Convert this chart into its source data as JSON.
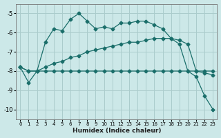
{
  "xlabel": "Humidex (Indice chaleur)",
  "ylabel": "",
  "background_color": "#cce8e8",
  "grid_color": "#aacccc",
  "line_color": "#1a6e6a",
  "xlim": [
    -0.5,
    23.5
  ],
  "ylim": [
    -10.5,
    -4.5
  ],
  "yticks": [
    -10,
    -9,
    -8,
    -7,
    -6,
    -5
  ],
  "xticks": [
    0,
    1,
    2,
    3,
    4,
    5,
    6,
    7,
    8,
    9,
    10,
    11,
    12,
    13,
    14,
    15,
    16,
    17,
    18,
    19,
    20,
    21,
    22,
    23
  ],
  "series1_x": [
    0,
    1,
    2,
    3,
    4,
    5,
    6,
    7,
    8,
    9,
    10,
    11,
    12,
    13,
    14,
    15,
    16,
    17,
    18,
    19,
    20,
    21,
    22,
    23
  ],
  "series1_y": [
    -7.8,
    -8.6,
    -8.0,
    -6.5,
    -5.8,
    -5.9,
    -5.3,
    -5.0,
    -5.4,
    -5.8,
    -5.7,
    -5.8,
    -5.5,
    -5.5,
    -5.4,
    -5.4,
    -5.6,
    -5.8,
    -6.3,
    -6.6,
    -8.0,
    -8.3,
    -9.3,
    -10.0
  ],
  "series2_x": [
    0,
    1,
    2,
    3,
    4,
    5,
    6,
    7,
    8,
    9,
    10,
    11,
    12,
    13,
    14,
    15,
    16,
    17,
    18,
    19,
    20,
    21,
    22,
    23
  ],
  "series2_y": [
    -7.8,
    -8.0,
    -8.0,
    -7.8,
    -7.6,
    -7.5,
    -7.3,
    -7.2,
    -7.0,
    -6.9,
    -6.8,
    -6.7,
    -6.6,
    -6.5,
    -6.5,
    -6.4,
    -6.3,
    -6.3,
    -6.3,
    -6.4,
    -6.6,
    -8.0,
    -8.1,
    -8.2
  ],
  "series3_x": [
    0,
    1,
    2,
    3,
    4,
    5,
    6,
    7,
    8,
    9,
    10,
    11,
    12,
    13,
    14,
    15,
    16,
    17,
    18,
    19,
    20,
    21,
    22,
    23
  ],
  "series3_y": [
    -7.8,
    -8.0,
    -8.0,
    -8.0,
    -8.0,
    -8.0,
    -8.0,
    -8.0,
    -8.0,
    -8.0,
    -8.0,
    -8.0,
    -8.0,
    -8.0,
    -8.0,
    -8.0,
    -8.0,
    -8.0,
    -8.0,
    -8.0,
    -8.0,
    -8.0,
    -8.0,
    -8.0
  ]
}
